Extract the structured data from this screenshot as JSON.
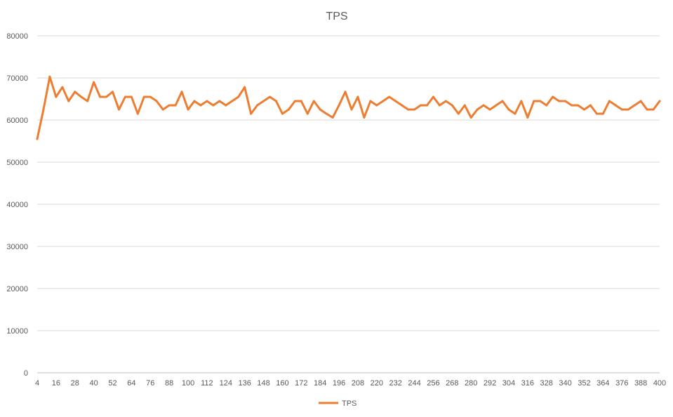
{
  "chart_data": {
    "type": "line",
    "title": "TPS",
    "xlabel": "",
    "ylabel": "",
    "ylim": [
      0,
      80000
    ],
    "y_ticks": [
      0,
      10000,
      20000,
      30000,
      40000,
      50000,
      60000,
      70000,
      80000
    ],
    "x_tick_labels": [
      4,
      16,
      28,
      40,
      52,
      64,
      76,
      88,
      100,
      112,
      124,
      136,
      148,
      160,
      172,
      184,
      196,
      208,
      220,
      232,
      244,
      256,
      268,
      280,
      292,
      304,
      316,
      328,
      340,
      352,
      364,
      376,
      388,
      400
    ],
    "grid": true,
    "legend": "bottom",
    "color": "#ED7D31",
    "x": [
      4,
      8,
      12,
      16,
      20,
      24,
      28,
      32,
      36,
      40,
      44,
      48,
      52,
      56,
      60,
      64,
      68,
      72,
      76,
      80,
      84,
      88,
      92,
      96,
      100,
      104,
      108,
      112,
      116,
      120,
      124,
      128,
      132,
      136,
      140,
      144,
      148,
      152,
      156,
      160,
      164,
      168,
      172,
      176,
      180,
      184,
      188,
      192,
      196,
      200,
      204,
      208,
      212,
      216,
      220,
      224,
      228,
      232,
      236,
      240,
      244,
      248,
      252,
      256,
      260,
      264,
      268,
      272,
      276,
      280,
      284,
      288,
      292,
      296,
      300,
      304,
      308,
      312,
      316,
      320,
      324,
      328,
      332,
      336,
      340,
      344,
      348,
      352,
      356,
      360,
      364,
      368,
      372,
      376,
      380,
      384,
      388,
      392,
      396,
      400
    ],
    "series": [
      {
        "name": "TPS",
        "values": [
          55500,
          62500,
          70300,
          65500,
          67800,
          64500,
          66700,
          65500,
          64500,
          69000,
          65500,
          65500,
          66700,
          62500,
          65500,
          65500,
          61500,
          65500,
          65500,
          64500,
          62500,
          63500,
          63500,
          66700,
          62500,
          64500,
          63500,
          64500,
          63500,
          64500,
          63500,
          64500,
          65500,
          67800,
          61500,
          63500,
          64500,
          65500,
          64500,
          61500,
          62500,
          64500,
          64500,
          61500,
          64500,
          62500,
          61500,
          60600,
          63500,
          66700,
          62500,
          65500,
          60600,
          64500,
          63500,
          64500,
          65500,
          64500,
          63500,
          62500,
          62500,
          63500,
          63500,
          65500,
          63500,
          64500,
          63500,
          61500,
          63500,
          60600,
          62500,
          63500,
          62500,
          63500,
          64500,
          62500,
          61500,
          64500,
          60600,
          64500,
          64500,
          63500,
          65500,
          64500,
          64500,
          63500,
          63500,
          62500,
          63500,
          61500,
          61500,
          64500,
          63500,
          62500,
          62500,
          63500,
          64500,
          62500,
          62500,
          64500
        ]
      }
    ]
  }
}
